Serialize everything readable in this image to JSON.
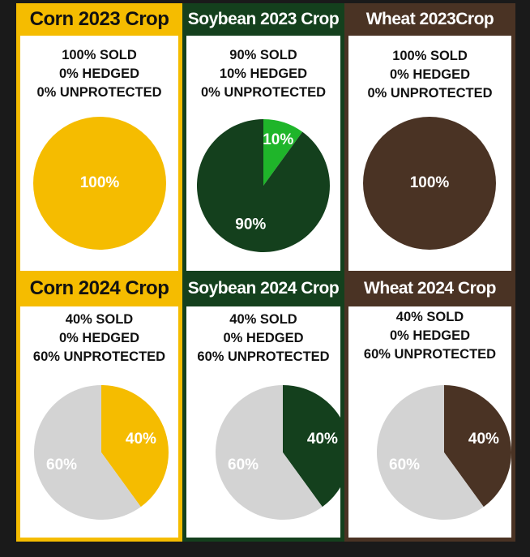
{
  "colors": {
    "corn": "#f5bc00",
    "soybean": "#14401d",
    "soybean_hedged": "#1fb52a",
    "wheat": "#4a3324",
    "unprotected": "#d3d3d3",
    "frame_bg": "#1a1a1a"
  },
  "chart_data": [
    {
      "type": "pie",
      "title": "Corn 2023 Crop",
      "stats": [
        "100% SOLD",
        "0% HEDGED",
        "0% UNPROTECTED"
      ],
      "slices": [
        {
          "value": 100,
          "label": "100%",
          "color": "#f5bc00"
        }
      ]
    },
    {
      "type": "pie",
      "title": "Soybean 2023 Crop",
      "stats": [
        "90% SOLD",
        "10% HEDGED",
        "0% UNPROTECTED"
      ],
      "slices": [
        {
          "value": 10,
          "label": "10%",
          "color": "#1fb52a"
        },
        {
          "value": 90,
          "label": "90%",
          "color": "#14401d"
        }
      ]
    },
    {
      "type": "pie",
      "title": "Wheat 2023Crop",
      "stats": [
        "100% SOLD",
        "0% HEDGED",
        "0% UNPROTECTED"
      ],
      "slices": [
        {
          "value": 100,
          "label": "100%",
          "color": "#4a3324"
        }
      ]
    },
    {
      "type": "pie",
      "title": "Corn 2024 Crop",
      "stats": [
        "40% SOLD",
        "0% HEDGED",
        "60% UNPROTECTED"
      ],
      "slices": [
        {
          "value": 40,
          "label": "40%",
          "color": "#f5bc00"
        },
        {
          "value": 60,
          "label": "60%",
          "color": "#d3d3d3"
        }
      ]
    },
    {
      "type": "pie",
      "title": "Soybean 2024 Crop",
      "stats": [
        "40% SOLD",
        "0% HEDGED",
        "60% UNPROTECTED"
      ],
      "slices": [
        {
          "value": 40,
          "label": "40%",
          "color": "#14401d"
        },
        {
          "value": 60,
          "label": "60%",
          "color": "#d3d3d3"
        }
      ]
    },
    {
      "type": "pie",
      "title": "Wheat 2024 Crop",
      "stats": [
        "40% SOLD",
        "0% HEDGED",
        "60% UNPROTECTED"
      ],
      "slices": [
        {
          "value": 40,
          "label": "40%",
          "color": "#4a3324"
        },
        {
          "value": 60,
          "label": "60%",
          "color": "#d3d3d3"
        }
      ]
    }
  ]
}
